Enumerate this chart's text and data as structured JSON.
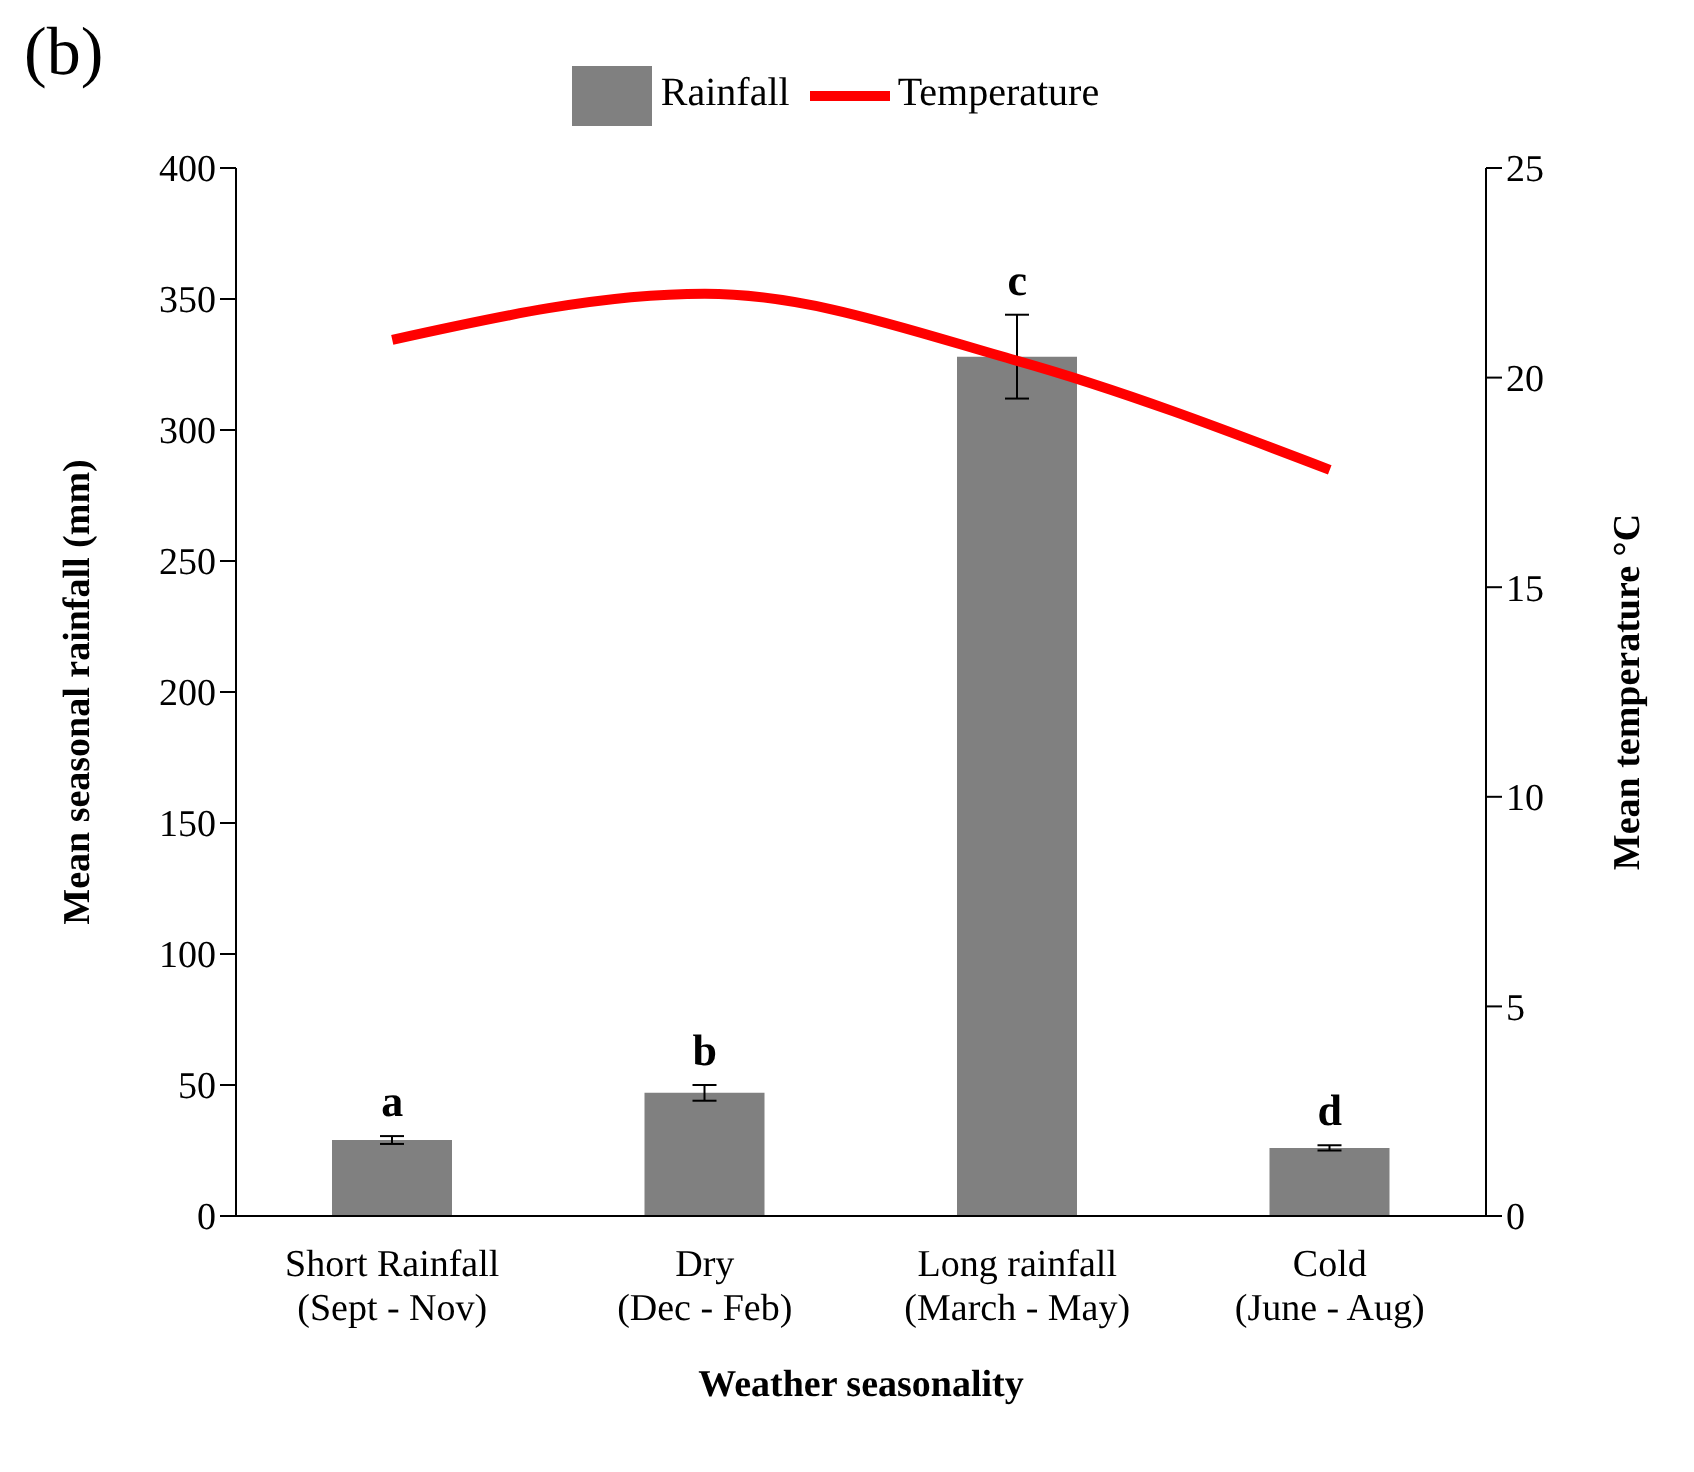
{
  "chart_data": {
    "type": "bar",
    "title": "(b)",
    "xlabel": "Weather seasonality",
    "ylabel": "Mean seasonal rainfall (mm)",
    "y2label": "Mean temperature °C",
    "categories": [
      "Short Rainfall\n(Sept - Nov)",
      "Dry\n(Dec - Feb)",
      "Long rainfall\n(March - May)",
      "Cold\n(June - Aug)"
    ],
    "series": [
      {
        "name": "Rainfall",
        "color": "#808080",
        "values": [
          29,
          47,
          328,
          26
        ],
        "errors": [
          1.5,
          3,
          16,
          1
        ]
      },
      {
        "name": "Temperature",
        "type": "line",
        "axis": "y2",
        "color": "#ff0000",
        "values": [
          20.9,
          22.0,
          20.4,
          17.8
        ]
      }
    ],
    "ylim": [
      0,
      400
    ],
    "yticks": [
      0,
      50,
      100,
      150,
      200,
      250,
      300,
      350,
      400
    ],
    "y2lim": [
      0,
      25
    ],
    "y2ticks": [
      0,
      5,
      10,
      15,
      20,
      25
    ],
    "legend": "top",
    "grid": false,
    "marker": "none",
    "annotations": [
      "a",
      "b",
      "c",
      "d"
    ]
  }
}
